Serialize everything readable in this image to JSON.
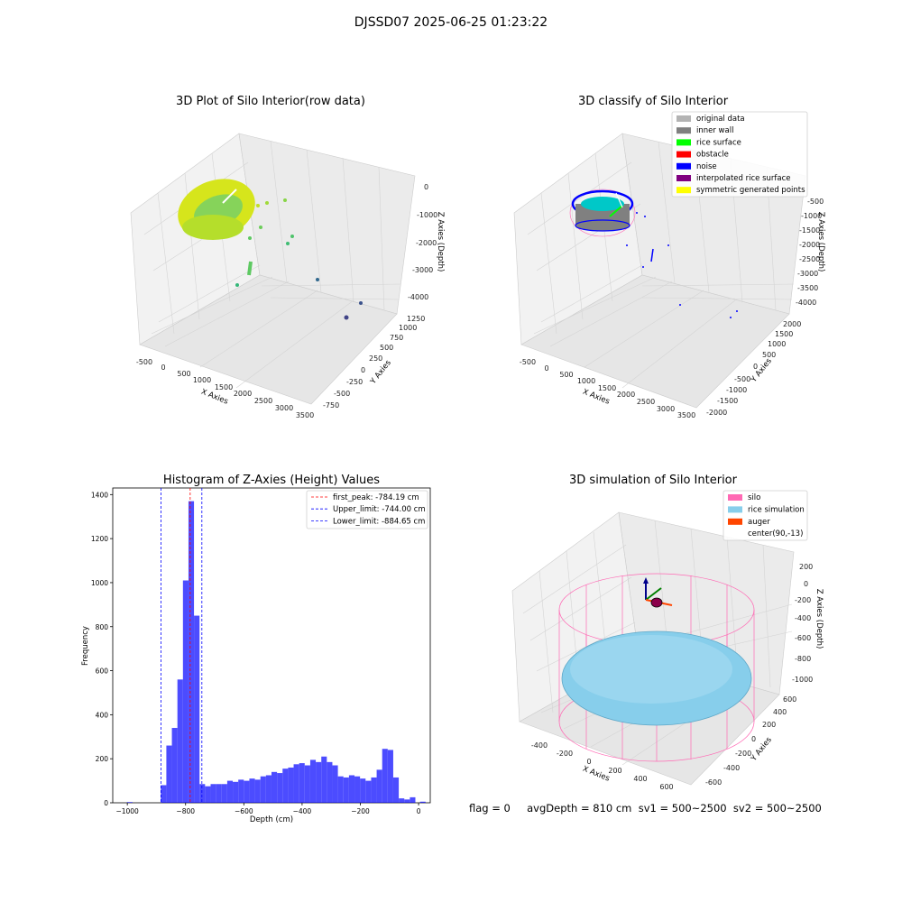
{
  "figure": {
    "title": "DJSSD07 2025-06-25 01:23:22",
    "footer": "flag = 0     avgDepth = 810 cm  sv1 = 500~2500  sv2 = 500~2500"
  },
  "panels": {
    "raw": {
      "title": "3D Plot of Silo Interior(row data)",
      "xlabel": "X Axies",
      "ylabel": "Y Axies",
      "zlabel": "Z Axies (Depth)",
      "xticks": [
        "-500",
        "0",
        "500",
        "1000",
        "1500",
        "2000",
        "2500",
        "3000",
        "3500"
      ],
      "yticks": [
        "-750",
        "-500",
        "-250",
        "0",
        "250",
        "500",
        "750",
        "1000",
        "1250"
      ],
      "zticks": [
        "-4000",
        "-3000",
        "-2000",
        "-1000",
        "0"
      ]
    },
    "classify": {
      "title": "3D classify of Silo Interior",
      "xlabel": "X Axies",
      "ylabel": "Y Axies",
      "zlabel": "Z Axies (Depth)",
      "xticks": [
        "-500",
        "0",
        "500",
        "1000",
        "1500",
        "2000",
        "2500",
        "3000",
        "3500"
      ],
      "yticks": [
        "-2000",
        "-1500",
        "-1000",
        "-500",
        "0",
        "500",
        "1000",
        "1500",
        "2000"
      ],
      "zticks": [
        "-4000",
        "-3500",
        "-3000",
        "-2500",
        "-2000",
        "-1500",
        "-1000",
        "-500"
      ],
      "legend": [
        {
          "label": "original data",
          "color": "#b3b3b3"
        },
        {
          "label": "inner wall",
          "color": "#808080"
        },
        {
          "label": "rice surface",
          "color": "#00ff00"
        },
        {
          "label": "obstacle",
          "color": "#ff0000"
        },
        {
          "label": "noise",
          "color": "#0000ff"
        },
        {
          "label": "interpolated rice surface",
          "color": "#800080"
        },
        {
          "label": "symmetric generated points",
          "color": "#ffff00"
        }
      ]
    },
    "simulation": {
      "title": "3D simulation of Silo Interior",
      "xlabel": "X Axies",
      "ylabel": "Y Axies",
      "zlabel": "Z Axies (Depth)",
      "xticks": [
        "-400",
        "-200",
        "0",
        "200",
        "400",
        "600"
      ],
      "yticks": [
        "-600",
        "-400",
        "-200",
        "0",
        "200",
        "400",
        "600"
      ],
      "zticks": [
        "-1000",
        "-800",
        "-600",
        "-400",
        "-200",
        "0",
        "200"
      ],
      "legend": [
        {
          "label": "silo",
          "color": "#ff69b4"
        },
        {
          "label": "rice simulation",
          "color": "#87ceeb"
        },
        {
          "label": "auger",
          "color": "#ff4500"
        },
        {
          "label": "center(90,-13)",
          "color": "none"
        }
      ]
    }
  },
  "chart_data": [
    {
      "type": "bar",
      "title": "Histogram of Z-Axies (Height) Values",
      "xlabel": "Depth (cm)",
      "ylabel": "Frequency",
      "xlim": [
        -1050,
        40
      ],
      "ylim": [
        0,
        1430
      ],
      "xticks": [
        -1000,
        -800,
        -600,
        -400,
        -200,
        0
      ],
      "yticks": [
        0,
        200,
        400,
        600,
        800,
        1000,
        1200,
        1400
      ],
      "bar_color": "#0000ff",
      "bin_width": 18.9,
      "bins": [
        {
          "x": -1001,
          "y": 3
        },
        {
          "x": -885,
          "y": 80
        },
        {
          "x": -866,
          "y": 260
        },
        {
          "x": -847,
          "y": 340
        },
        {
          "x": -828,
          "y": 560
        },
        {
          "x": -809,
          "y": 1010
        },
        {
          "x": -790,
          "y": 1370
        },
        {
          "x": -771,
          "y": 850
        },
        {
          "x": -752,
          "y": 85
        },
        {
          "x": -733,
          "y": 75
        },
        {
          "x": -714,
          "y": 85
        },
        {
          "x": -695,
          "y": 85
        },
        {
          "x": -676,
          "y": 85
        },
        {
          "x": -657,
          "y": 100
        },
        {
          "x": -638,
          "y": 95
        },
        {
          "x": -619,
          "y": 105
        },
        {
          "x": -600,
          "y": 100
        },
        {
          "x": -581,
          "y": 110
        },
        {
          "x": -562,
          "y": 105
        },
        {
          "x": -543,
          "y": 120
        },
        {
          "x": -524,
          "y": 125
        },
        {
          "x": -505,
          "y": 140
        },
        {
          "x": -486,
          "y": 135
        },
        {
          "x": -467,
          "y": 155
        },
        {
          "x": -448,
          "y": 160
        },
        {
          "x": -429,
          "y": 175
        },
        {
          "x": -410,
          "y": 180
        },
        {
          "x": -391,
          "y": 170
        },
        {
          "x": -372,
          "y": 195
        },
        {
          "x": -353,
          "y": 185
        },
        {
          "x": -334,
          "y": 210
        },
        {
          "x": -315,
          "y": 185
        },
        {
          "x": -296,
          "y": 170
        },
        {
          "x": -277,
          "y": 120
        },
        {
          "x": -258,
          "y": 115
        },
        {
          "x": -239,
          "y": 125
        },
        {
          "x": -220,
          "y": 120
        },
        {
          "x": -201,
          "y": 110
        },
        {
          "x": -182,
          "y": 100
        },
        {
          "x": -163,
          "y": 115
        },
        {
          "x": -144,
          "y": 150
        },
        {
          "x": -125,
          "y": 245
        },
        {
          "x": -106,
          "y": 240
        },
        {
          "x": -87,
          "y": 115
        },
        {
          "x": -68,
          "y": 20
        },
        {
          "x": -49,
          "y": 15
        },
        {
          "x": -30,
          "y": 25
        },
        {
          "x": 5,
          "y": 5
        }
      ],
      "lines": [
        {
          "label": "first_peak: -784.19 cm",
          "x": -784.19,
          "color": "#ff0000"
        },
        {
          "label": "Upper_limit: -744.00 cm",
          "x": -744.0,
          "color": "#0000ff"
        },
        {
          "label": "Lower_limit: -884.65 cm",
          "x": -884.65,
          "color": "#0000ff"
        }
      ]
    }
  ]
}
